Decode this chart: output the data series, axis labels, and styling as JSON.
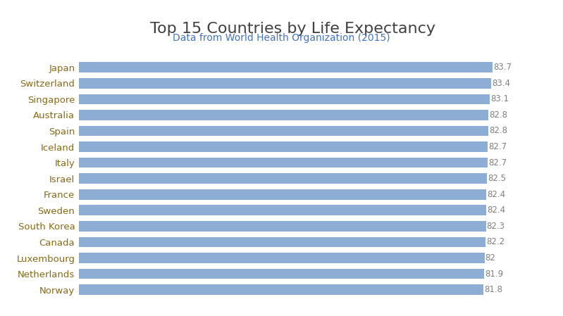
{
  "title": "Top 15 Countries by Life Expectancy",
  "subtitle": "Data from World Health Organization (2015)",
  "countries": [
    "Norway",
    "Netherlands",
    "Luxembourg",
    "Canada",
    "South Korea",
    "Sweden",
    "France",
    "Israel",
    "Italy",
    "Iceland",
    "Spain",
    "Australia",
    "Singapore",
    "Switzerland",
    "Japan"
  ],
  "values": [
    81.8,
    81.9,
    82.0,
    82.2,
    82.3,
    82.4,
    82.4,
    82.5,
    82.7,
    82.7,
    82.8,
    82.8,
    83.1,
    83.4,
    83.7
  ],
  "bar_color": "#8EADD4",
  "title_color": "#404040",
  "subtitle_color": "#4472C4",
  "label_color": "#8B6914",
  "value_color": "#7F7F7F",
  "background_color": "#FFFFFF",
  "title_fontsize": 16,
  "subtitle_fontsize": 10,
  "tick_fontsize": 9.5,
  "value_fontsize": 8.5,
  "xlim_min": 0,
  "xlim_max": 86.5
}
